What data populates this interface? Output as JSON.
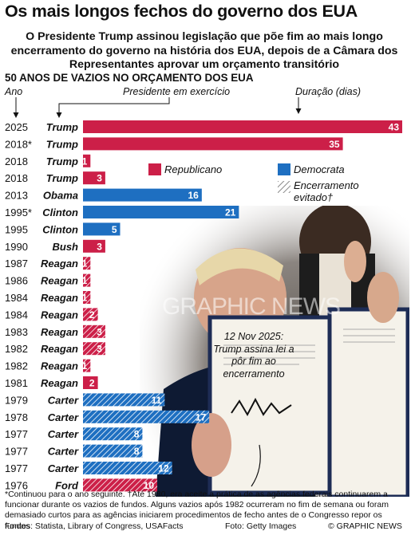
{
  "header": {
    "title": "Os mais longos fechos do governo dos EUA",
    "subtitle": "O Presidente Trump assinou legislação que põe fim ao mais longo encerramento do governo na história dos EUA, depois de a Câmara dos Representantes aprovar um orçamento transitório",
    "section": "50 ANOS DE VAZIOS NO ORÇAMENTO DOS EUA"
  },
  "chart_data": {
    "type": "bar",
    "orientation": "horizontal",
    "column_headers": {
      "year": "Ano",
      "president": "Presidente em exercício",
      "duration": "Duração (dias)"
    },
    "colors": {
      "Republicano": "#cc1f48",
      "Democrata": "#1e6fc1"
    },
    "legend": [
      {
        "label": "Republicano",
        "style": "solid",
        "color": "#cc1f48"
      },
      {
        "label": "Democrata",
        "style": "solid",
        "color": "#1e6fc1"
      },
      {
        "label": "Encerramento evitado†",
        "style": "hatched",
        "color": "#9a9a9a"
      }
    ],
    "rows": [
      {
        "year": "2025",
        "president": "Trump",
        "party": "Republicano",
        "days": 43,
        "avoided": false
      },
      {
        "year": "2018*",
        "president": "Trump",
        "party": "Republicano",
        "days": 35,
        "avoided": false
      },
      {
        "year": "2018",
        "president": "Trump",
        "party": "Republicano",
        "days": 1,
        "avoided": false
      },
      {
        "year": "2018",
        "president": "Trump",
        "party": "Republicano",
        "days": 3,
        "avoided": false
      },
      {
        "year": "2013",
        "president": "Obama",
        "party": "Democrata",
        "days": 16,
        "avoided": false
      },
      {
        "year": "1995*",
        "president": "Clinton",
        "party": "Democrata",
        "days": 21,
        "avoided": false
      },
      {
        "year": "1995",
        "president": "Clinton",
        "party": "Democrata",
        "days": 5,
        "avoided": false
      },
      {
        "year": "1990",
        "president": "Bush",
        "party": "Republicano",
        "days": 3,
        "avoided": false
      },
      {
        "year": "1987",
        "president": "Reagan",
        "party": "Republicano",
        "days": 1,
        "avoided": true
      },
      {
        "year": "1986",
        "president": "Reagan",
        "party": "Republicano",
        "days": 1,
        "avoided": true
      },
      {
        "year": "1984",
        "president": "Reagan",
        "party": "Republicano",
        "days": 1,
        "avoided": true
      },
      {
        "year": "1984",
        "president": "Reagan",
        "party": "Republicano",
        "days": 2,
        "avoided": true
      },
      {
        "year": "1983",
        "president": "Reagan",
        "party": "Republicano",
        "days": 3,
        "avoided": true
      },
      {
        "year": "1982",
        "president": "Reagan",
        "party": "Republicano",
        "days": 3,
        "avoided": true
      },
      {
        "year": "1982",
        "president": "Reagan",
        "party": "Republicano",
        "days": 1,
        "avoided": true
      },
      {
        "year": "1981",
        "president": "Reagan",
        "party": "Republicano",
        "days": 2,
        "avoided": false
      },
      {
        "year": "1979",
        "president": "Carter",
        "party": "Democrata",
        "days": 11,
        "avoided": true
      },
      {
        "year": "1978",
        "president": "Carter",
        "party": "Democrata",
        "days": 17,
        "avoided": true
      },
      {
        "year": "1977",
        "president": "Carter",
        "party": "Democrata",
        "days": 8,
        "avoided": true
      },
      {
        "year": "1977",
        "president": "Carter",
        "party": "Democrata",
        "days": 8,
        "avoided": true
      },
      {
        "year": "1977",
        "president": "Carter",
        "party": "Democrata",
        "days": 12,
        "avoided": true
      },
      {
        "year": "1976",
        "president": "Ford",
        "party": "Republicano",
        "days": 10,
        "avoided": true
      }
    ],
    "xlim": [
      0,
      43
    ]
  },
  "annotation": "12 Nov 2025: Trump assina lei a pôr fim ao encerramento",
  "watermark": "GRAPHIC NEWS",
  "footer": {
    "footnote": "*Continuou para o ano seguinte. †Até 1980, era aceite a prática de as agências federais continuarem a funcionar durante os vazios de fundos. Alguns vazios após 1982 ocurreram no fim de semana ou foram demasiado curtos para as agências iniciarem procedimentos de fecho antes de o Congresso repor os fundos",
    "sources": "Fontes: Statista, Library of Congress, USAFacts",
    "photo_credit": "Foto: Getty Images",
    "brand": "© GRAPHIC NEWS"
  }
}
